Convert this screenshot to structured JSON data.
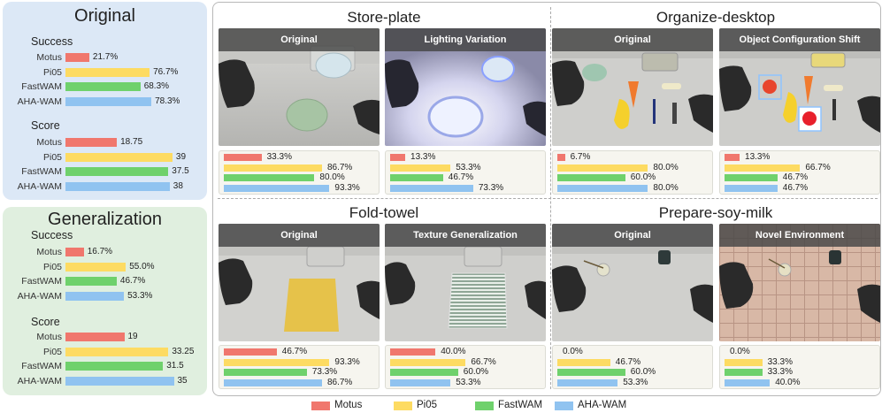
{
  "colors": {
    "Motus": "#f0776d",
    "Pi05": "#fddb62",
    "FastWAM": "#6fd16c",
    "AHA-WAM": "#90c3f0"
  },
  "chart_data": [
    {
      "type": "bar",
      "orientation": "horizontal",
      "panel": "Original",
      "subtitle": "Success",
      "categories": [
        "Motus",
        "Pi05",
        "FastWAM",
        "AHA-WAM"
      ],
      "values": [
        21.7,
        76.7,
        68.3,
        78.3
      ],
      "labels": [
        "21.7%",
        "76.7%",
        "68.3%",
        "78.3%"
      ]
    },
    {
      "type": "bar",
      "orientation": "horizontal",
      "panel": "Original",
      "subtitle": "Score",
      "categories": [
        "Motus",
        "Pi05",
        "FastWAM",
        "AHA-WAM"
      ],
      "values": [
        18.75,
        39,
        37.5,
        38
      ],
      "labels": [
        "18.75",
        "39",
        "37.5",
        "38"
      ]
    },
    {
      "type": "bar",
      "orientation": "horizontal",
      "panel": "Generalization",
      "subtitle": "Success",
      "categories": [
        "Motus",
        "Pi05",
        "FastWAM",
        "AHA-WAM"
      ],
      "values": [
        16.7,
        55.0,
        46.7,
        53.3
      ],
      "labels": [
        "16.7%",
        "55.0%",
        "46.7%",
        "53.3%"
      ]
    },
    {
      "type": "bar",
      "orientation": "horizontal",
      "panel": "Generalization",
      "subtitle": "Score",
      "categories": [
        "Motus",
        "Pi05",
        "FastWAM",
        "AHA-WAM"
      ],
      "values": [
        19,
        33.25,
        31.5,
        35
      ],
      "labels": [
        "19",
        "33.25",
        "31.5",
        "35"
      ]
    }
  ],
  "panels": {
    "original": {
      "title": "Original",
      "success": "Success",
      "score": "Score"
    },
    "generalization": {
      "title": "Generalization",
      "success": "Success",
      "score": "Score"
    }
  },
  "tasks": [
    {
      "title": "Store-plate",
      "images": [
        {
          "label": "Original",
          "scene": "store-plate-original"
        },
        {
          "label": "Lighting Variation",
          "scene": "store-plate-lighting"
        }
      ],
      "results": [
        {
          "values": [
            33.3,
            86.7,
            80.0,
            93.3
          ],
          "labels": [
            "33.3%",
            "86.7%",
            "80.0%",
            "93.3%"
          ]
        },
        {
          "values": [
            13.3,
            53.3,
            46.7,
            73.3
          ],
          "labels": [
            "13.3%",
            "53.3%",
            "46.7%",
            "73.3%"
          ]
        }
      ]
    },
    {
      "title": "Organize-desktop",
      "images": [
        {
          "label": "Original",
          "scene": "organize-desktop-original"
        },
        {
          "label": "Object Configuration Shift",
          "scene": "organize-desktop-shift"
        }
      ],
      "results": [
        {
          "values": [
            6.7,
            80.0,
            60.0,
            80.0
          ],
          "labels": [
            "6.7%",
            "80.0%",
            "60.0%",
            "80.0%"
          ]
        },
        {
          "values": [
            13.3,
            66.7,
            46.7,
            46.7
          ],
          "labels": [
            "13.3%",
            "66.7%",
            "46.7%",
            "46.7%"
          ]
        }
      ]
    },
    {
      "title": "Fold-towel",
      "images": [
        {
          "label": "Original",
          "scene": "fold-towel-original"
        },
        {
          "label": "Texture Generalization",
          "scene": "fold-towel-texture"
        }
      ],
      "results": [
        {
          "values": [
            46.7,
            93.3,
            73.3,
            86.7
          ],
          "labels": [
            "46.7%",
            "93.3%",
            "73.3%",
            "86.7%"
          ]
        },
        {
          "values": [
            40.0,
            66.7,
            60.0,
            53.3
          ],
          "labels": [
            "40.0%",
            "66.7%",
            "60.0%",
            "53.3%"
          ]
        }
      ]
    },
    {
      "title": "Prepare-soy-milk",
      "images": [
        {
          "label": "Original",
          "scene": "prepare-soy-milk-original"
        },
        {
          "label": "Novel Environment",
          "scene": "prepare-soy-milk-novel"
        }
      ],
      "results": [
        {
          "values": [
            0.0,
            46.7,
            60.0,
            53.3
          ],
          "labels": [
            "0.0%",
            "46.7%",
            "60.0%",
            "53.3%"
          ]
        },
        {
          "values": [
            0.0,
            33.3,
            33.3,
            40.0
          ],
          "labels": [
            "0.0%",
            "33.3%",
            "33.3%",
            "40.0%"
          ]
        }
      ]
    }
  ],
  "legend": [
    "Motus",
    "Pi05",
    "FastWAM",
    "AHA-WAM"
  ]
}
